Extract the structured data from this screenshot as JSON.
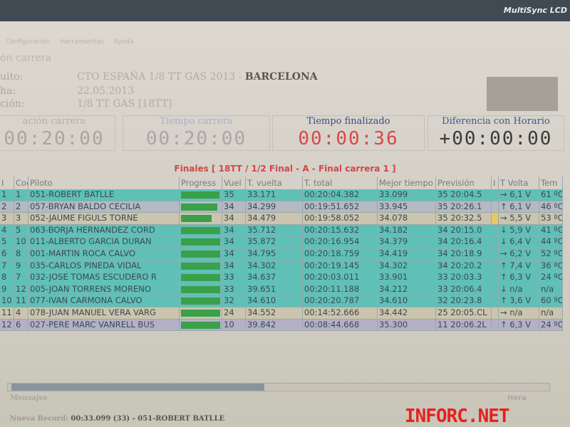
{
  "monitor": {
    "brand": "MultiSync LCD"
  },
  "menu": [
    "Configuración",
    "Herramientas",
    "Ayuda"
  ],
  "section": "ón carrera",
  "info": [
    {
      "label": "uito:",
      "value": "CTO ESPAÑA 1/8 TT GAS 2013 - ",
      "bold": "BARCELONA"
    },
    {
      "label": "ha:",
      "value": "22.05.2013",
      "bold": ""
    },
    {
      "label": "ción:",
      "value": "1/8 TT GAS  [18TT]",
      "bold": ""
    }
  ],
  "clocks": [
    {
      "title": "ación carrera",
      "value": "00:20:00",
      "color": "#a9a59e"
    },
    {
      "title": "Tiempo carrera",
      "value": "00:20:00",
      "color": "#a9a5a8"
    },
    {
      "title": "Tiempo finalizado",
      "value": "00:00:36",
      "color": "#d84848"
    },
    {
      "title": "Diferencia con Horario",
      "value": "+00:00:00",
      "color": "#3a3a3a"
    }
  ],
  "race_title": "Finales  [ 18TT / 1/2 Final - A - Final carrera 1 ]",
  "columns": [
    "I",
    "Coc",
    "Piloto",
    "Progress",
    "Vuel",
    "T. vuelta",
    "T. total",
    "Mejor tiempo",
    "Previsión",
    "I",
    "T  Volta",
    "Tem"
  ],
  "rows": [
    {
      "pos": "1",
      "coc": "1",
      "piloto": "051-ROBERT BATLLE",
      "progress": 0.95,
      "vuel": "35",
      "tvuelta": "33.171",
      "ttotal": "00:20:04.382",
      "mejor": "33.099",
      "prev": "35 20:04.5",
      "trend": "→",
      "volta": "6,1 V",
      "tem": "61 ºC",
      "color": "teal"
    },
    {
      "pos": "2",
      "coc": "2",
      "piloto": "057-BRYAN BALDO CECILIA",
      "progress": 0.9,
      "vuel": "34",
      "tvuelta": "34.299",
      "ttotal": "00:19:51.652",
      "mejor": "33.945",
      "prev": "35 20:26.1",
      "trend": "↑",
      "volta": "6,1 V",
      "tem": "46 ºC",
      "color": "gray"
    },
    {
      "pos": "3",
      "coc": "3",
      "piloto": "052-JAUME FIGULS TORNE",
      "progress": 0.75,
      "vuel": "34",
      "tvuelta": "34.479",
      "ttotal": "00:19:58.052",
      "mejor": "34.078",
      "prev": "35 20:32.5",
      "trend": "→",
      "volta": "5,5 V",
      "tem": "53 ºC",
      "color": "beige"
    },
    {
      "pos": "4",
      "coc": "5",
      "piloto": "063-BORJA HERNANDEZ CORD",
      "progress": 0.97,
      "vuel": "34",
      "tvuelta": "35.712",
      "ttotal": "00:20:15.632",
      "mejor": "34.182",
      "prev": "34 20:15.0",
      "trend": "↓",
      "volta": "5,9 V",
      "tem": "41 ºC",
      "color": "teal"
    },
    {
      "pos": "5",
      "coc": "10",
      "piloto": "011-ALBERTO GARCIA DURAN",
      "progress": 0.97,
      "vuel": "34",
      "tvuelta": "35.872",
      "ttotal": "00:20:16.954",
      "mejor": "34.379",
      "prev": "34 20:16.4",
      "trend": "↓",
      "volta": "6,4 V",
      "tem": "44 ºC",
      "color": "teal"
    },
    {
      "pos": "6",
      "coc": "8",
      "piloto": "001-MARTIN ROCA CALVO",
      "progress": 0.97,
      "vuel": "34",
      "tvuelta": "34.795",
      "ttotal": "00:20:18.759",
      "mejor": "34.419",
      "prev": "34 20:18.9",
      "trend": "→",
      "volta": "6,2 V",
      "tem": "52 ºC",
      "color": "teal"
    },
    {
      "pos": "7",
      "coc": "9",
      "piloto": "035-CARLOS PINEDA VIDAL",
      "progress": 0.97,
      "vuel": "34",
      "tvuelta": "34.302",
      "ttotal": "00:20:19.145",
      "mejor": "34.302",
      "prev": "34 20:20.2",
      "trend": "↑",
      "volta": "7,4 V",
      "tem": "36 ºC",
      "color": "teal"
    },
    {
      "pos": "8",
      "coc": "7",
      "piloto": "032-JOSE TOMAS ESCUDERO R",
      "progress": 0.97,
      "vuel": "33",
      "tvuelta": "34.637",
      "ttotal": "00:20:03.011",
      "mejor": "33.901",
      "prev": "33 20:03.3",
      "trend": "↑",
      "volta": "6,3 V",
      "tem": "24 ºC",
      "color": "teal"
    },
    {
      "pos": "9",
      "coc": "12",
      "piloto": "005-JOAN TORRENS MORENO",
      "progress": 0.97,
      "vuel": "33",
      "tvuelta": "39.651",
      "ttotal": "00:20:11.188",
      "mejor": "34.212",
      "prev": "33 20:06.4",
      "trend": "↓",
      "volta": "n/a",
      "tem": "n/a",
      "color": "teal"
    },
    {
      "pos": "10",
      "coc": "11",
      "piloto": "077-IVAN CARMONA CALVO",
      "progress": 0.97,
      "vuel": "32",
      "tvuelta": "34.610",
      "ttotal": "00:20:20.787",
      "mejor": "34.610",
      "prev": "32 20:23.8",
      "trend": "↑",
      "volta": "3,6 V",
      "tem": "60 ºC",
      "color": "teal"
    },
    {
      "pos": "11",
      "coc": "4",
      "piloto": "078-JUAN MANUEL VERA VARG",
      "progress": 0.97,
      "vuel": "24",
      "tvuelta": "34.552",
      "ttotal": "00:14:52.666",
      "mejor": "34.442",
      "prev": "25 20:05.CL",
      "trend": "→",
      "volta": "n/a",
      "tem": "n/a",
      "color": "beige"
    },
    {
      "pos": "12",
      "coc": "6",
      "piloto": "027-PERE MARC VANRELL BUS",
      "progress": 0.97,
      "vuel": "10",
      "tvuelta": "39.842",
      "ttotal": "00:08:44.668",
      "mejor": "35.300",
      "prev": "11 20:06.2L",
      "trend": "↑",
      "volta": "6,3 V",
      "tem": "24 ºC",
      "color": "lav"
    }
  ],
  "messages": {
    "label": "Mensajes",
    "hora": "Hora",
    "record_label": "Nueva Record:",
    "record_value": "00:33.099 (33)  -  051-ROBERT BATLLE"
  },
  "watermark": "inforc.net"
}
